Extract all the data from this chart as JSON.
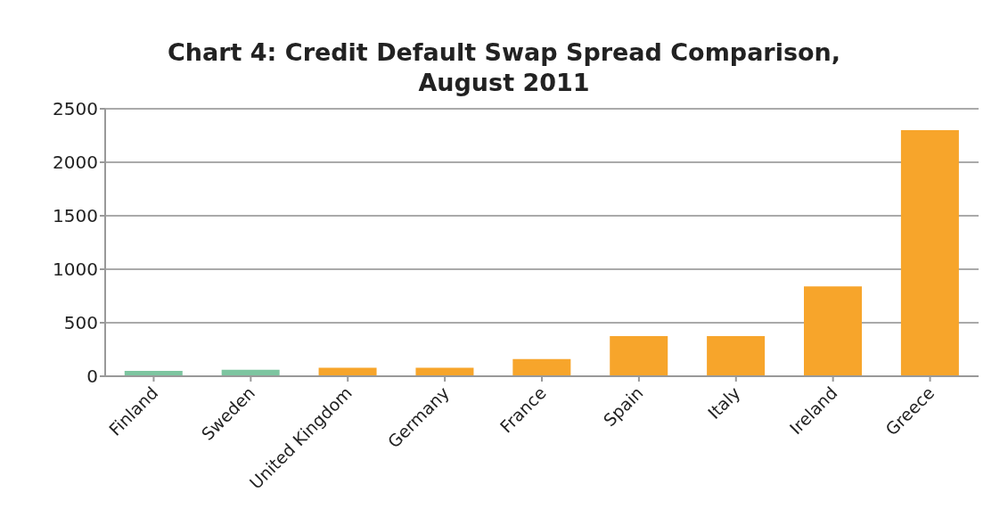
{
  "chart_data": {
    "type": "bar",
    "title": "Chart 4: Credit Default Swap Spread Comparison, August 2011",
    "categories": [
      "Finland",
      "Sweden",
      "United Kingdom",
      "Germany",
      "France",
      "Spain",
      "Italy",
      "Ireland",
      "Greece"
    ],
    "values": [
      50,
      60,
      80,
      80,
      160,
      375,
      375,
      840,
      2300
    ],
    "colors": [
      "#7dc5a0",
      "#7dc5a0",
      "#f7a52b",
      "#f7a52b",
      "#f7a52b",
      "#f7a52b",
      "#f7a52b",
      "#f7a52b",
      "#f7a52b"
    ],
    "ylim": [
      0,
      2500
    ],
    "yticks": [
      0,
      500,
      1000,
      1500,
      2000,
      2500
    ],
    "grid": "y"
  }
}
